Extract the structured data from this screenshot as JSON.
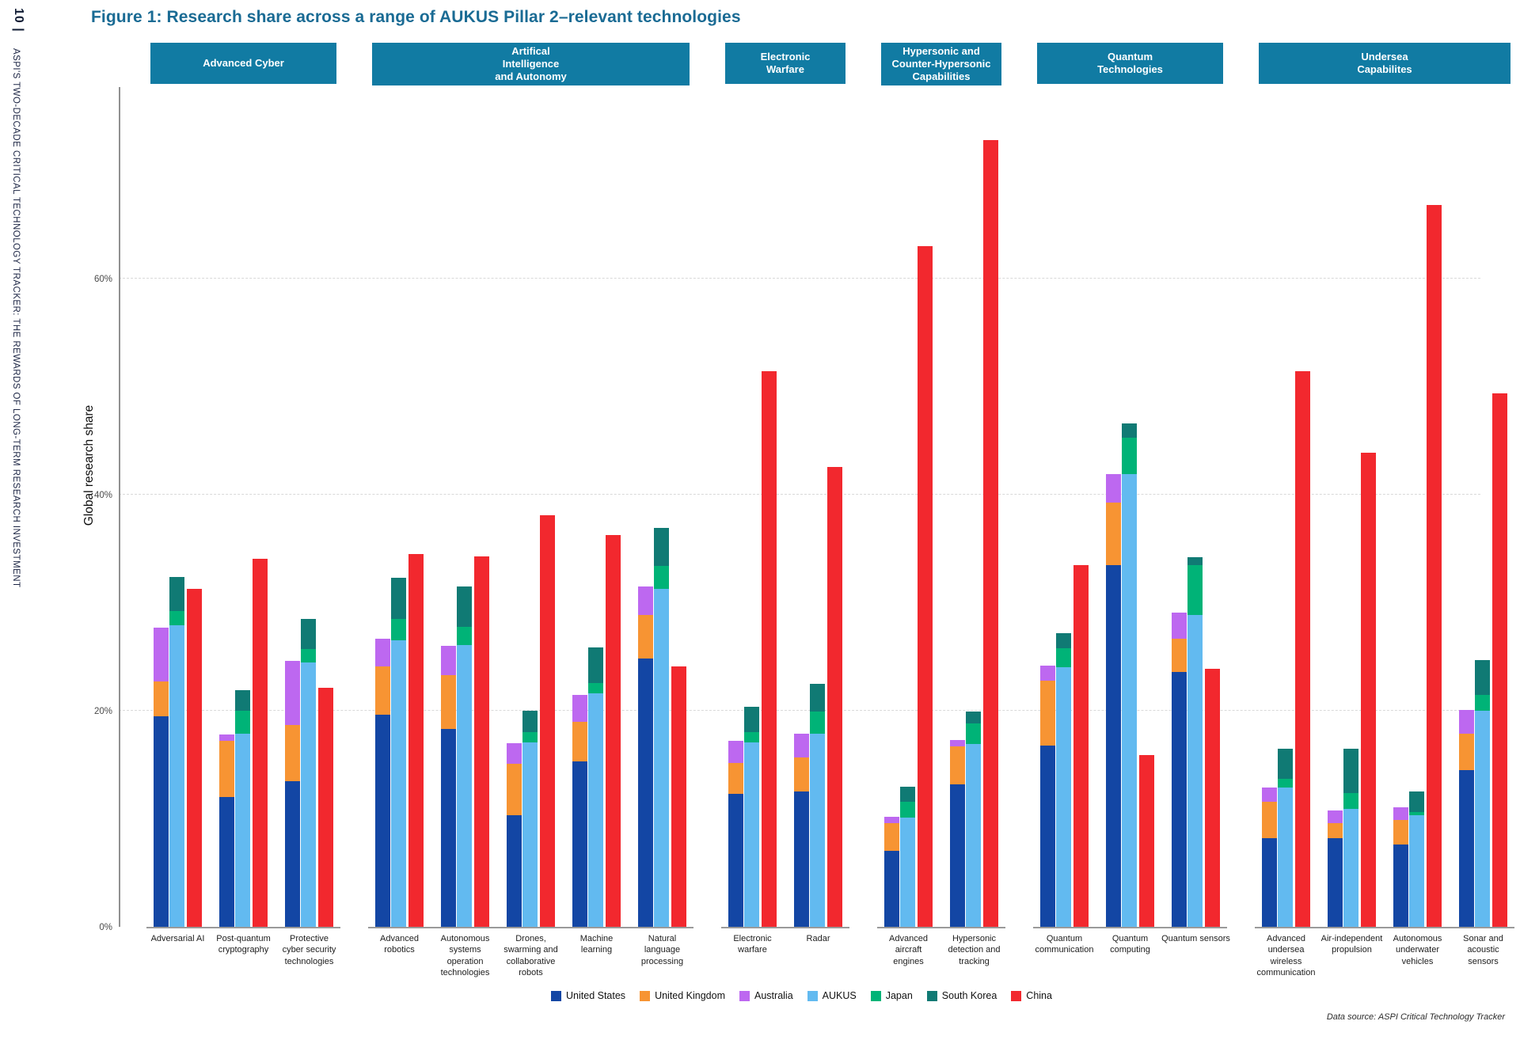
{
  "page": {
    "number": "10 |",
    "sidebar_text": "ASPI'S TWO-DECADE CRITICAL TECHNOLOGY TRACKER: THE REWARDS OF LONG-TERM RESEARCH INVESTMENT",
    "title": "Figure 1:  Research share across a range of AUKUS Pillar 2–relevant technologies",
    "data_source": "Data source: ASPI Critical Technology Tracker"
  },
  "chart_data": {
    "type": "bar",
    "subtype": "grouped-stacked",
    "ylabel": "Global research share",
    "yticks": [
      {
        "label": "0%",
        "value": 0
      },
      {
        "label": "20%",
        "value": 20
      },
      {
        "label": "40%",
        "value": 40
      },
      {
        "label": "60%",
        "value": 60
      }
    ],
    "ylim": [
      0,
      78
    ],
    "grid": "dashed-horizontal",
    "legend_position": "bottom-center",
    "bar_groups": [
      [
        "us",
        "uk",
        "australia"
      ],
      [
        "aukus",
        "japan",
        "south_korea"
      ],
      [
        "china"
      ]
    ],
    "legend": [
      {
        "id": "us",
        "label": "United States",
        "color": "#1346a4"
      },
      {
        "id": "uk",
        "label": "United Kingdom",
        "color": "#f79433"
      },
      {
        "id": "australia",
        "label": "Australia",
        "color": "#bd68f0"
      },
      {
        "id": "aukus",
        "label": "AUKUS",
        "color": "#62baf0"
      },
      {
        "id": "japan",
        "label": "Japan",
        "color": "#00b377"
      },
      {
        "id": "south_korea",
        "label": "South Korea",
        "color": "#107a74"
      },
      {
        "id": "china",
        "label": "China",
        "color": "#f2282e"
      }
    ],
    "categories": [
      {
        "label": "Advanced Cyber",
        "technologies": [
          {
            "label": "Adversarial AI",
            "values": {
              "us": 19.5,
              "uk": 3.2,
              "australia": 5.0,
              "aukus": 27.9,
              "japan": 1.3,
              "south_korea": 3.2,
              "china": 31.3
            }
          },
          {
            "label": "Post-quantum\ncryptography",
            "values": {
              "us": 12.0,
              "uk": 5.2,
              "australia": 0.6,
              "aukus": 17.9,
              "japan": 2.1,
              "south_korea": 1.9,
              "china": 34.1
            }
          },
          {
            "label": "Protective\ncyber security\ntechnologies",
            "values": {
              "us": 13.5,
              "uk": 5.2,
              "australia": 5.9,
              "aukus": 24.5,
              "japan": 1.2,
              "south_korea": 2.8,
              "china": 22.1
            }
          }
        ]
      },
      {
        "label": "Artifical\nIntelligence\nand Autonomy",
        "technologies": [
          {
            "label": "Advanced\nrobotics",
            "values": {
              "us": 19.6,
              "uk": 4.5,
              "australia": 2.6,
              "aukus": 26.5,
              "japan": 2.0,
              "south_korea": 3.8,
              "china": 34.5
            }
          },
          {
            "label": "Autonomous\nsystems\noperation\ntechnologies",
            "values": {
              "us": 18.3,
              "uk": 5.0,
              "australia": 2.7,
              "aukus": 26.1,
              "japan": 1.7,
              "south_korea": 3.7,
              "china": 34.3
            }
          },
          {
            "label": "Drones,\nswarming and\ncollaborative\nrobots",
            "values": {
              "us": 10.3,
              "uk": 4.8,
              "australia": 1.9,
              "aukus": 17.1,
              "japan": 0.9,
              "south_korea": 2.0,
              "china": 38.1
            }
          },
          {
            "label": "Machine\nlearning",
            "values": {
              "us": 15.3,
              "uk": 3.7,
              "australia": 2.5,
              "aukus": 21.6,
              "japan": 1.0,
              "south_korea": 3.3,
              "china": 36.3
            }
          },
          {
            "label": "Natural\nlanguage\nprocessing",
            "values": {
              "us": 24.8,
              "uk": 4.1,
              "australia": 2.6,
              "aukus": 31.3,
              "japan": 2.1,
              "south_korea": 3.5,
              "china": 24.1
            }
          }
        ]
      },
      {
        "label": "Electronic\nWarfare",
        "technologies": [
          {
            "label": "Electronic\nwarfare",
            "values": {
              "us": 12.3,
              "uk": 2.9,
              "australia": 2.0,
              "aukus": 17.1,
              "japan": 0.9,
              "south_korea": 2.4,
              "china": 51.4
            }
          },
          {
            "label": "Radar",
            "values": {
              "us": 12.5,
              "uk": 3.2,
              "australia": 2.2,
              "aukus": 17.9,
              "japan": 2.0,
              "south_korea": 2.6,
              "china": 42.6
            }
          }
        ]
      },
      {
        "label": "Hypersonic and\nCounter-Hypersonic\nCapabilities",
        "technologies": [
          {
            "label": "Advanced\naircraft\nengines",
            "values": {
              "us": 7.0,
              "uk": 2.6,
              "australia": 0.6,
              "aukus": 10.1,
              "japan": 1.5,
              "south_korea": 1.4,
              "china": 63.0
            }
          },
          {
            "label": "Hypersonic\ndetection and\ntracking",
            "values": {
              "us": 13.2,
              "uk": 3.5,
              "australia": 0.6,
              "aukus": 16.9,
              "japan": 1.9,
              "south_korea": 1.1,
              "china": 72.8
            }
          }
        ]
      },
      {
        "label": "Quantum\nTechnologies",
        "technologies": [
          {
            "label": "Quantum\ncommunication",
            "values": {
              "us": 16.8,
              "uk": 6.0,
              "australia": 1.4,
              "aukus": 24.0,
              "japan": 1.8,
              "south_korea": 1.4,
              "china": 33.5
            }
          },
          {
            "label": "Quantum\ncomputing",
            "values": {
              "us": 33.5,
              "uk": 5.8,
              "australia": 2.6,
              "aukus": 41.9,
              "japan": 3.4,
              "south_korea": 1.3,
              "china": 15.9
            }
          },
          {
            "label": "Quantum sensors",
            "values": {
              "us": 23.6,
              "uk": 3.1,
              "australia": 2.4,
              "aukus": 28.9,
              "japan": 4.6,
              "south_korea": 0.7,
              "china": 23.9
            }
          }
        ]
      },
      {
        "label": "Undersea\nCapabilites",
        "technologies": [
          {
            "label": "Advanced\nundersea\nwireless\ncommunication",
            "values": {
              "us": 8.2,
              "uk": 3.4,
              "australia": 1.3,
              "aukus": 12.9,
              "japan": 0.8,
              "south_korea": 2.8,
              "china": 51.4
            }
          },
          {
            "label": "Air-independent\npropulsion",
            "values": {
              "us": 8.2,
              "uk": 1.4,
              "australia": 1.2,
              "aukus": 10.9,
              "japan": 1.5,
              "south_korea": 4.1,
              "china": 43.9
            }
          },
          {
            "label": "Autonomous\nunderwater\nvehicles",
            "values": {
              "us": 7.6,
              "uk": 2.3,
              "australia": 1.2,
              "aukus": 10.3,
              "japan": 0.3,
              "south_korea": 1.9,
              "china": 66.8
            }
          },
          {
            "label": "Sonar and\nacoustic\nsensors",
            "values": {
              "us": 14.5,
              "uk": 3.4,
              "australia": 2.2,
              "aukus": 20.0,
              "japan": 1.5,
              "south_korea": 3.2,
              "china": 49.4
            }
          }
        ]
      }
    ]
  }
}
